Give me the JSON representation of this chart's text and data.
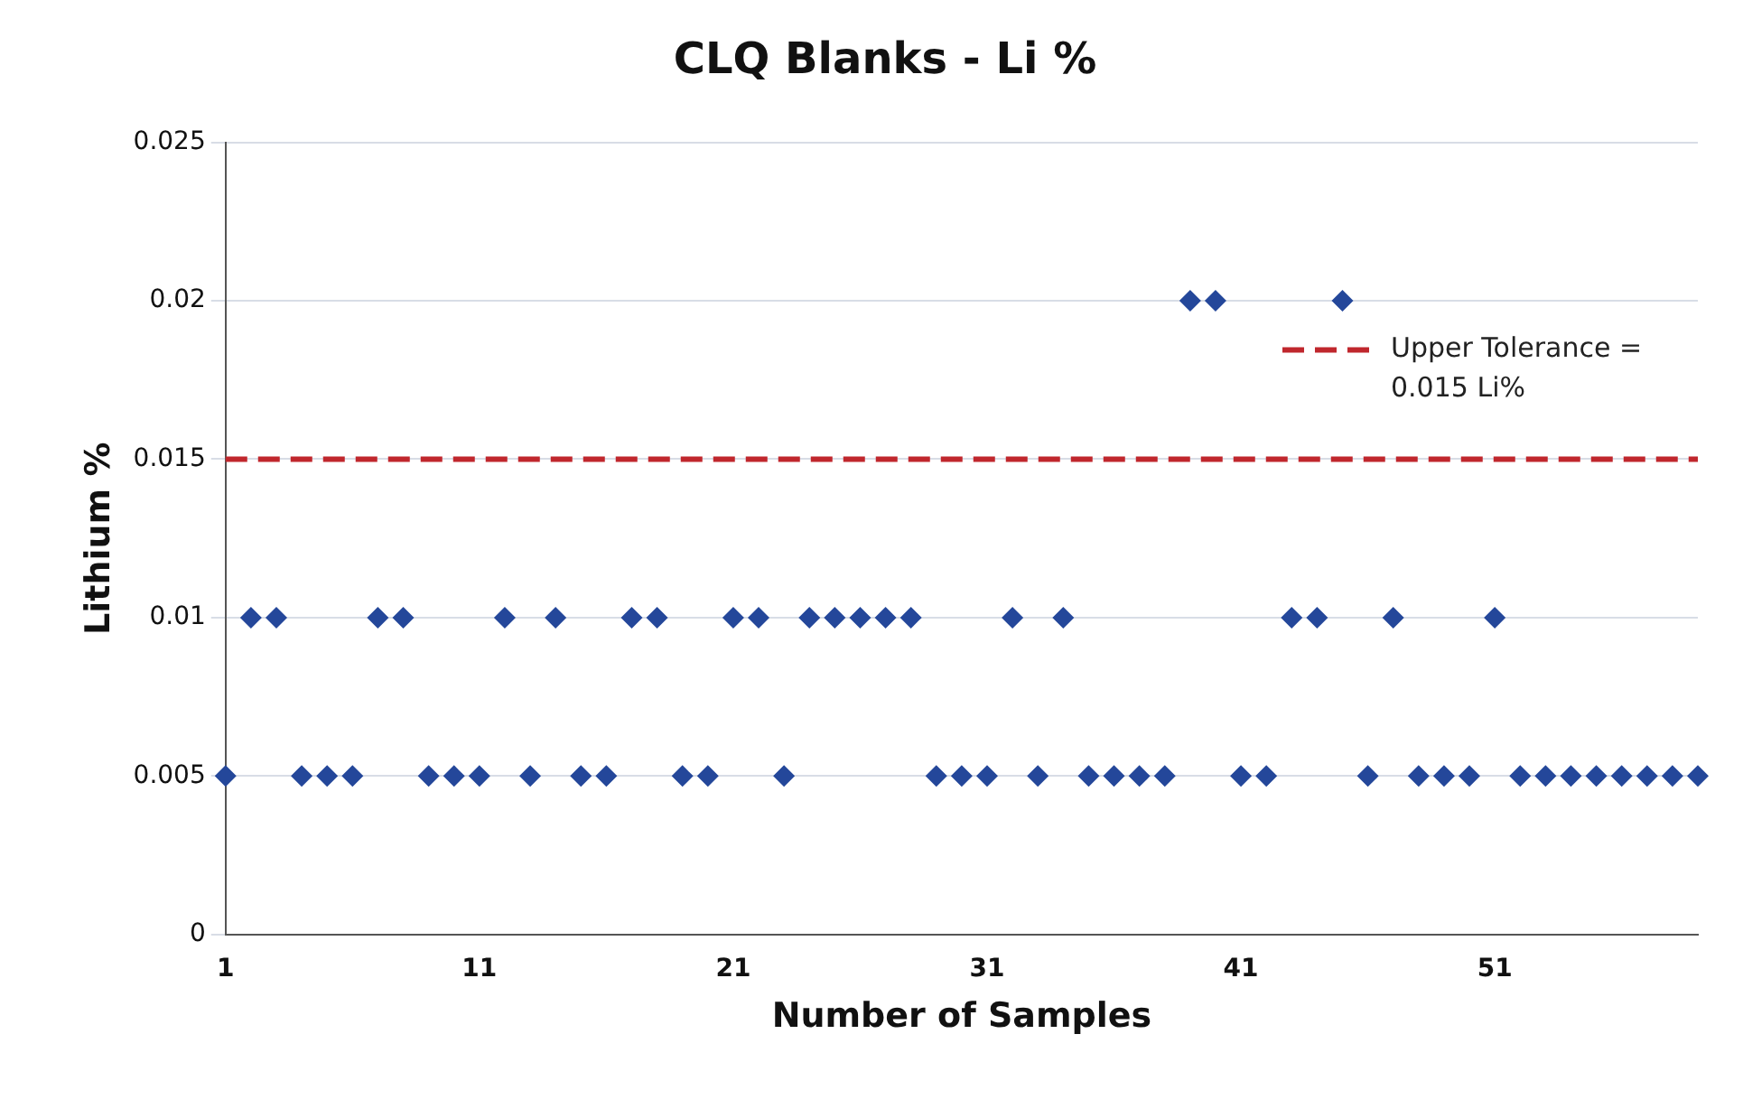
{
  "chart_data": {
    "type": "scatter",
    "title": "CLQ Blanks - Li %",
    "xlabel": "Number of Samples",
    "ylabel": "Lithium %",
    "categories": [
      "1",
      null,
      null,
      null,
      null,
      null,
      null,
      null,
      null,
      null,
      "11",
      null,
      null,
      null,
      null,
      null,
      null,
      null,
      null,
      null,
      "21",
      null,
      null,
      null,
      null,
      null,
      null,
      null,
      null,
      null,
      "31",
      null,
      null,
      null,
      null,
      null,
      null,
      null,
      null,
      null,
      "41",
      null,
      null,
      null,
      null,
      null,
      null,
      null,
      null,
      null,
      "51",
      null,
      null,
      null,
      null,
      null,
      null,
      null,
      null
    ],
    "values": [
      0.005,
      0.01,
      0.01,
      0.005,
      0.005,
      0.005,
      0.01,
      0.01,
      0.005,
      0.005,
      0.005,
      0.01,
      0.005,
      0.01,
      0.005,
      0.005,
      0.01,
      0.01,
      0.005,
      0.005,
      0.01,
      0.01,
      0.005,
      0.01,
      0.01,
      0.01,
      0.01,
      0.01,
      0.005,
      0.005,
      0.005,
      0.01,
      0.005,
      0.01,
      0.005,
      0.005,
      0.005,
      0.005,
      0.02,
      0.02,
      0.005,
      0.005,
      0.01,
      0.01,
      0.02,
      0.005,
      0.01,
      0.005,
      0.005,
      0.005,
      0.01,
      0.005,
      0.005,
      0.005,
      0.005,
      0.005,
      0.005,
      0.005,
      0.005
    ],
    "color": "#24479a",
    "marker": "diamond",
    "ylim": [
      0,
      0.025
    ],
    "yticks": [
      0,
      0.005,
      0.01,
      0.015,
      0.02,
      0.025
    ],
    "grid": "y",
    "legend": "top right",
    "ref_lines": [
      {
        "axis": "y",
        "value": 0.015,
        "label": "Upper Tolerance = 0.015 Li%",
        "color": "#c0272d",
        "line_style": "dashed"
      }
    ]
  }
}
